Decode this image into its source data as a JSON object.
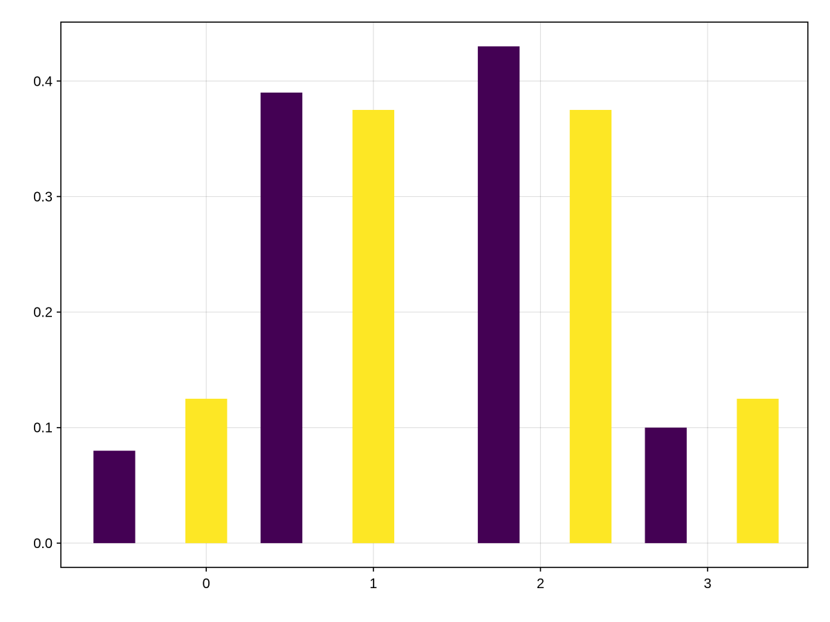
{
  "chart_data": {
    "type": "bar",
    "title": "",
    "xlabel": "",
    "ylabel": "",
    "xlim": [
      -0.87,
      3.6
    ],
    "ylim": [
      -0.021,
      0.451
    ],
    "grid": true,
    "bar_width": 0.25,
    "x_ticks": [
      0,
      1,
      2,
      3
    ],
    "x_tick_labels": [
      "0",
      "1",
      "2",
      "3"
    ],
    "y_ticks": [
      0.0,
      0.1,
      0.2,
      0.3,
      0.4
    ],
    "y_tick_labels": [
      "0.0",
      "0.1",
      "0.2",
      "0.3",
      "0.4"
    ],
    "series": [
      {
        "color": "#440154",
        "x": [
          -0.55,
          0.45,
          1.75,
          2.75
        ],
        "values": [
          0.08,
          0.39,
          0.43,
          0.1
        ]
      },
      {
        "color": "#fde725",
        "x": [
          0.0,
          1.0,
          2.3,
          3.3
        ],
        "values": [
          0.125,
          0.375,
          0.375,
          0.125
        ]
      }
    ]
  }
}
